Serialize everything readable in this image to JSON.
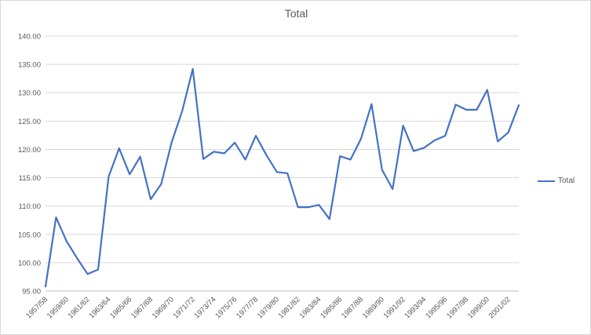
{
  "chart_data": {
    "type": "line",
    "title": "Total",
    "categories": [
      "1957/58",
      "1958/59",
      "1959/60",
      "1960/61",
      "1961/62",
      "1962/63",
      "1963/64",
      "1964/65",
      "1965/66",
      "1966/67",
      "1967/68",
      "1968/69",
      "1969/70",
      "1970/71",
      "1971/72",
      "1972/73",
      "1973/74",
      "1974/75",
      "1975/76",
      "1976/77",
      "1977/78",
      "1978/79",
      "1979/80",
      "1980/81",
      "1981/82",
      "1982/83",
      "1983/84",
      "1984/85",
      "1985/86",
      "1986/87",
      "1987/88",
      "1988/89",
      "1989/90",
      "1990/91",
      "1991/92",
      "1992/93",
      "1993/94",
      "1994/95",
      "1995/96",
      "1996/97",
      "1997/98",
      "1998/99",
      "1999/00",
      "2000/01",
      "2001/02",
      "2002/03"
    ],
    "series": [
      {
        "name": "Total",
        "color": "#4472C4",
        "values": [
          95.8,
          108.0,
          103.8,
          100.8,
          98.0,
          98.8,
          115.2,
          120.2,
          115.6,
          118.7,
          111.2,
          113.9,
          121.3,
          126.8,
          134.2,
          118.3,
          119.6,
          119.3,
          121.2,
          118.2,
          122.4,
          119.0,
          116.0,
          115.8,
          109.8,
          109.8,
          110.2,
          107.7,
          118.8,
          118.2,
          121.9,
          128.0,
          116.4,
          113.0,
          124.2,
          119.7,
          120.3,
          121.6,
          122.4,
          127.9,
          127.0,
          127.0,
          130.5,
          121.4,
          123.0,
          127.8
        ]
      }
    ],
    "xlabel": "",
    "ylabel": "",
    "ylim": [
      95,
      140
    ],
    "ytick_step": 5,
    "ytick_decimals": 2,
    "xtick_label_every": 2,
    "grid": true,
    "legend_position": "right",
    "colors": {
      "axis_label": "#595959",
      "gridline": "#d9d9d9",
      "axis_line": "#bfbfbf",
      "title": "#595959"
    }
  },
  "legend": {
    "label": "Total"
  }
}
